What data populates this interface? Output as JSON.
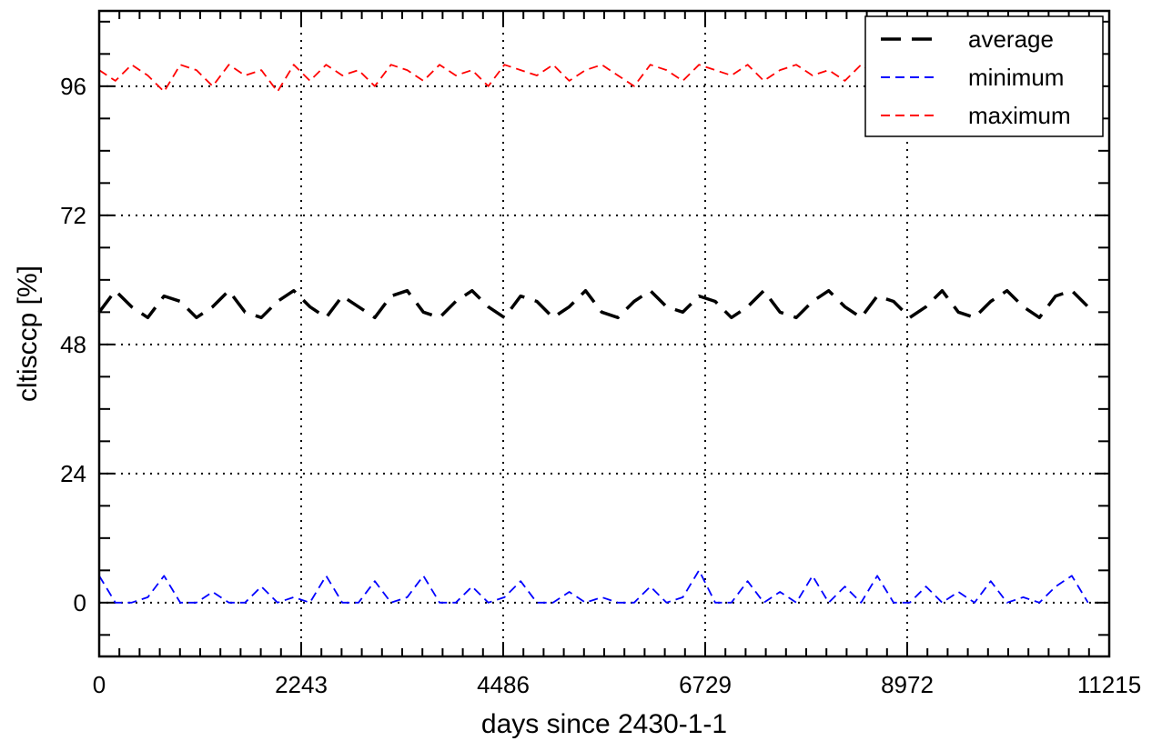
{
  "chart_data": {
    "type": "line",
    "xlabel": "days since 2430-1-1",
    "ylabel": "cltisccp [%]",
    "xlim": [
      0,
      11215
    ],
    "ylim": [
      -10,
      110
    ],
    "xticks": [
      0,
      2243,
      4486,
      6729,
      8972,
      11215
    ],
    "xtick_labels": [
      "0",
      "2243",
      "4486",
      "6729",
      "8972",
      "11215"
    ],
    "yticks": [
      0,
      24,
      48,
      72,
      96
    ],
    "ytick_labels": [
      "0",
      "24",
      "48",
      "72",
      "96"
    ],
    "grid": "dotted",
    "legend_position": "top-right",
    "series": [
      {
        "name": "average",
        "color": "#000000",
        "dash": "long",
        "x": [
          0,
          180,
          360,
          540,
          720,
          900,
          1080,
          1260,
          1440,
          1620,
          1800,
          1980,
          2160,
          2340,
          2520,
          2700,
          2880,
          3060,
          3240,
          3420,
          3600,
          3780,
          3960,
          4140,
          4320,
          4500,
          4680,
          4860,
          5040,
          5220,
          5400,
          5580,
          5760,
          5940,
          6120,
          6300,
          6480,
          6660,
          6840,
          7020,
          7200,
          7380,
          7560,
          7740,
          7920,
          8100,
          8280,
          8460,
          8640,
          8820,
          9000,
          9180,
          9360,
          9540,
          9720,
          9900,
          10080,
          10260,
          10440,
          10620,
          10800,
          10980
        ],
        "y": [
          54,
          58,
          55,
          53,
          57,
          56,
          53,
          55,
          58,
          54,
          53,
          56,
          58,
          55,
          53,
          57,
          55,
          53,
          57,
          58,
          54,
          53,
          56,
          58,
          55,
          53,
          57,
          56,
          53,
          55,
          58,
          54,
          53,
          56,
          58,
          55,
          54,
          57,
          56,
          53,
          55,
          58,
          54,
          53,
          56,
          58,
          55,
          53,
          57,
          56,
          53,
          55,
          58,
          54,
          53,
          56,
          58,
          55,
          53,
          57,
          58,
          55
        ]
      },
      {
        "name": "minimum",
        "color": "#0000ff",
        "dash": "short",
        "x": [
          0,
          180,
          360,
          540,
          720,
          900,
          1080,
          1260,
          1440,
          1620,
          1800,
          1980,
          2160,
          2340,
          2520,
          2700,
          2880,
          3060,
          3240,
          3420,
          3600,
          3780,
          3960,
          4140,
          4320,
          4500,
          4680,
          4860,
          5040,
          5220,
          5400,
          5580,
          5760,
          5940,
          6120,
          6300,
          6480,
          6660,
          6840,
          7020,
          7200,
          7380,
          7560,
          7740,
          7920,
          8100,
          8280,
          8460,
          8640,
          8820,
          9000,
          9180,
          9360,
          9540,
          9720,
          9900,
          10080,
          10260,
          10440,
          10620,
          10800,
          10980
        ],
        "y": [
          5,
          0,
          0,
          1,
          5,
          0,
          0,
          2,
          0,
          0,
          3,
          0,
          1,
          0,
          5,
          0,
          0,
          4,
          0,
          1,
          5,
          0,
          0,
          3,
          0,
          1,
          4,
          0,
          0,
          2,
          0,
          1,
          0,
          0,
          3,
          0,
          1,
          6,
          0,
          0,
          4,
          0,
          2,
          0,
          5,
          0,
          3,
          0,
          5,
          0,
          0,
          3,
          0,
          2,
          0,
          4,
          0,
          1,
          0,
          3,
          5,
          0
        ]
      },
      {
        "name": "maximum",
        "color": "#ff0000",
        "dash": "short",
        "x": [
          0,
          180,
          360,
          540,
          720,
          900,
          1080,
          1260,
          1440,
          1620,
          1800,
          1980,
          2160,
          2340,
          2520,
          2700,
          2880,
          3060,
          3240,
          3420,
          3600,
          3780,
          3960,
          4140,
          4320,
          4500,
          4680,
          4860,
          5040,
          5220,
          5400,
          5580,
          5760,
          5940,
          6120,
          6300,
          6480,
          6660,
          6840,
          7020,
          7200,
          7380,
          7560,
          7740,
          7920,
          8100,
          8280,
          8460,
          8640,
          8820,
          9000,
          9180,
          9360,
          9540,
          9720,
          9900,
          10080,
          10260,
          10440,
          10620,
          10800,
          10980
        ],
        "y": [
          99,
          97,
          100,
          98,
          95,
          100,
          99,
          96,
          100,
          98,
          99,
          95,
          100,
          97,
          100,
          98,
          99,
          96,
          100,
          99,
          97,
          100,
          98,
          99,
          96,
          100,
          99,
          98,
          100,
          97,
          99,
          100,
          98,
          96,
          100,
          99,
          97,
          100,
          99,
          98,
          100,
          97,
          99,
          100,
          98,
          99,
          97,
          100,
          98,
          95,
          100,
          99,
          98,
          100,
          97,
          99,
          100,
          98,
          99,
          100,
          97,
          99
        ]
      }
    ]
  }
}
